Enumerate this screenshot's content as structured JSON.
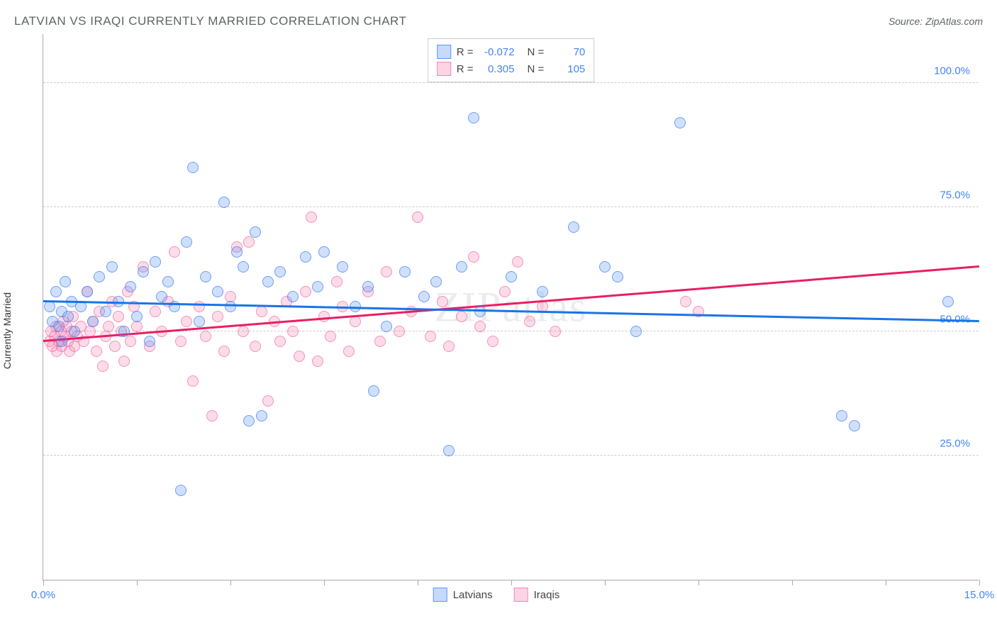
{
  "title": "LATVIAN VS IRAQI CURRENTLY MARRIED CORRELATION CHART",
  "source": "Source: ZipAtlas.com",
  "watermark": "ZIPatlas",
  "ylabel": "Currently Married",
  "chart": {
    "type": "scatter",
    "xlim": [
      0,
      15
    ],
    "ylim": [
      0,
      110
    ],
    "y_ticks": [
      25,
      50,
      75,
      100
    ],
    "y_tick_labels": [
      "25.0%",
      "50.0%",
      "75.0%",
      "100.0%"
    ],
    "x_ticks": [
      0,
      1.5,
      3,
      4.5,
      6,
      7.5,
      9,
      10.5,
      12,
      13.5,
      15
    ],
    "x_tick_labels": {
      "0": "0.0%",
      "15": "15.0%"
    },
    "background_color": "#ffffff",
    "grid_color": "#cccccc",
    "axis_color": "#aaaaaa",
    "tick_label_color": "#4285f4",
    "series": {
      "latvians": {
        "label": "Latvians",
        "color_fill": "rgba(66,133,244,0.25)",
        "color_stroke": "rgba(66,133,244,0.7)",
        "r_value": "-0.072",
        "n_value": "70",
        "trend": {
          "y_at_x0": 56,
          "y_at_x15": 52,
          "color": "#1a73e8"
        },
        "points": [
          [
            0.1,
            55
          ],
          [
            0.15,
            52
          ],
          [
            0.2,
            58
          ],
          [
            0.25,
            51
          ],
          [
            0.3,
            54
          ],
          [
            0.3,
            48
          ],
          [
            0.35,
            60
          ],
          [
            0.4,
            53
          ],
          [
            0.45,
            56
          ],
          [
            0.5,
            50
          ],
          [
            0.6,
            55
          ],
          [
            0.7,
            58
          ],
          [
            0.8,
            52
          ],
          [
            0.9,
            61
          ],
          [
            1.0,
            54
          ],
          [
            1.1,
            63
          ],
          [
            1.2,
            56
          ],
          [
            1.3,
            50
          ],
          [
            1.4,
            59
          ],
          [
            1.5,
            53
          ],
          [
            1.6,
            62
          ],
          [
            1.7,
            48
          ],
          [
            1.8,
            64
          ],
          [
            1.9,
            57
          ],
          [
            2.0,
            60
          ],
          [
            2.1,
            55
          ],
          [
            2.2,
            18
          ],
          [
            2.3,
            68
          ],
          [
            2.4,
            83
          ],
          [
            2.5,
            52
          ],
          [
            2.6,
            61
          ],
          [
            2.8,
            58
          ],
          [
            2.9,
            76
          ],
          [
            3.0,
            55
          ],
          [
            3.1,
            66
          ],
          [
            3.2,
            63
          ],
          [
            3.3,
            32
          ],
          [
            3.4,
            70
          ],
          [
            3.5,
            33
          ],
          [
            3.6,
            60
          ],
          [
            3.8,
            62
          ],
          [
            4.0,
            57
          ],
          [
            4.2,
            65
          ],
          [
            4.4,
            59
          ],
          [
            4.5,
            66
          ],
          [
            4.8,
            63
          ],
          [
            5.0,
            55
          ],
          [
            5.2,
            59
          ],
          [
            5.3,
            38
          ],
          [
            5.5,
            51
          ],
          [
            5.8,
            62
          ],
          [
            6.1,
            57
          ],
          [
            6.3,
            60
          ],
          [
            6.5,
            26
          ],
          [
            6.7,
            63
          ],
          [
            6.9,
            93
          ],
          [
            7.0,
            54
          ],
          [
            7.5,
            61
          ],
          [
            8.0,
            58
          ],
          [
            8.5,
            71
          ],
          [
            9.0,
            63
          ],
          [
            9.2,
            61
          ],
          [
            9.5,
            50
          ],
          [
            10.2,
            92
          ],
          [
            12.8,
            33
          ],
          [
            13.0,
            31
          ],
          [
            14.5,
            56
          ]
        ]
      },
      "iraqis": {
        "label": "Iraqis",
        "color_fill": "rgba(244,114,168,0.25)",
        "color_stroke": "rgba(244,114,168,0.7)",
        "r_value": "0.305",
        "n_value": "105",
        "trend": {
          "y_at_x0": 48,
          "y_at_x15": 63,
          "color": "#e91e63"
        },
        "points": [
          [
            0.1,
            48
          ],
          [
            0.12,
            50
          ],
          [
            0.15,
            47
          ],
          [
            0.18,
            49
          ],
          [
            0.2,
            51
          ],
          [
            0.22,
            46
          ],
          [
            0.25,
            48
          ],
          [
            0.28,
            50
          ],
          [
            0.3,
            47
          ],
          [
            0.32,
            52
          ],
          [
            0.35,
            49
          ],
          [
            0.38,
            51
          ],
          [
            0.4,
            48
          ],
          [
            0.42,
            46
          ],
          [
            0.45,
            50
          ],
          [
            0.48,
            53
          ],
          [
            0.5,
            47
          ],
          [
            0.55,
            49
          ],
          [
            0.6,
            51
          ],
          [
            0.65,
            48
          ],
          [
            0.7,
            58
          ],
          [
            0.75,
            50
          ],
          [
            0.8,
            52
          ],
          [
            0.85,
            46
          ],
          [
            0.9,
            54
          ],
          [
            0.95,
            43
          ],
          [
            1.0,
            49
          ],
          [
            1.05,
            51
          ],
          [
            1.1,
            56
          ],
          [
            1.15,
            47
          ],
          [
            1.2,
            53
          ],
          [
            1.25,
            50
          ],
          [
            1.3,
            44
          ],
          [
            1.35,
            58
          ],
          [
            1.4,
            48
          ],
          [
            1.45,
            55
          ],
          [
            1.5,
            51
          ],
          [
            1.6,
            63
          ],
          [
            1.7,
            47
          ],
          [
            1.8,
            54
          ],
          [
            1.9,
            50
          ],
          [
            2.0,
            56
          ],
          [
            2.1,
            66
          ],
          [
            2.2,
            48
          ],
          [
            2.3,
            52
          ],
          [
            2.4,
            40
          ],
          [
            2.5,
            55
          ],
          [
            2.6,
            49
          ],
          [
            2.7,
            33
          ],
          [
            2.8,
            53
          ],
          [
            2.9,
            46
          ],
          [
            3.0,
            57
          ],
          [
            3.1,
            67
          ],
          [
            3.2,
            50
          ],
          [
            3.3,
            68
          ],
          [
            3.4,
            47
          ],
          [
            3.5,
            54
          ],
          [
            3.6,
            36
          ],
          [
            3.7,
            52
          ],
          [
            3.8,
            48
          ],
          [
            3.9,
            56
          ],
          [
            4.0,
            50
          ],
          [
            4.1,
            45
          ],
          [
            4.2,
            58
          ],
          [
            4.3,
            73
          ],
          [
            4.4,
            44
          ],
          [
            4.5,
            53
          ],
          [
            4.6,
            49
          ],
          [
            4.7,
            60
          ],
          [
            4.8,
            55
          ],
          [
            4.9,
            46
          ],
          [
            5.0,
            52
          ],
          [
            5.2,
            58
          ],
          [
            5.4,
            48
          ],
          [
            5.5,
            62
          ],
          [
            5.7,
            50
          ],
          [
            5.9,
            54
          ],
          [
            6.0,
            73
          ],
          [
            6.2,
            49
          ],
          [
            6.4,
            56
          ],
          [
            6.5,
            47
          ],
          [
            6.7,
            53
          ],
          [
            6.9,
            65
          ],
          [
            7.0,
            51
          ],
          [
            7.2,
            48
          ],
          [
            7.4,
            58
          ],
          [
            7.6,
            64
          ],
          [
            7.8,
            52
          ],
          [
            8.0,
            55
          ],
          [
            8.2,
            50
          ],
          [
            10.3,
            56
          ],
          [
            10.5,
            54
          ]
        ]
      }
    }
  },
  "legend_top": {
    "rows": [
      {
        "swatch": "blue",
        "r_label": "R =",
        "r_val": "-0.072",
        "n_label": "N =",
        "n_val": "70"
      },
      {
        "swatch": "pink",
        "r_label": "R =",
        "r_val": "0.305",
        "n_label": "N =",
        "n_val": "105"
      }
    ]
  },
  "legend_bottom": [
    {
      "swatch": "blue",
      "label": "Latvians"
    },
    {
      "swatch": "pink",
      "label": "Iraqis"
    }
  ]
}
